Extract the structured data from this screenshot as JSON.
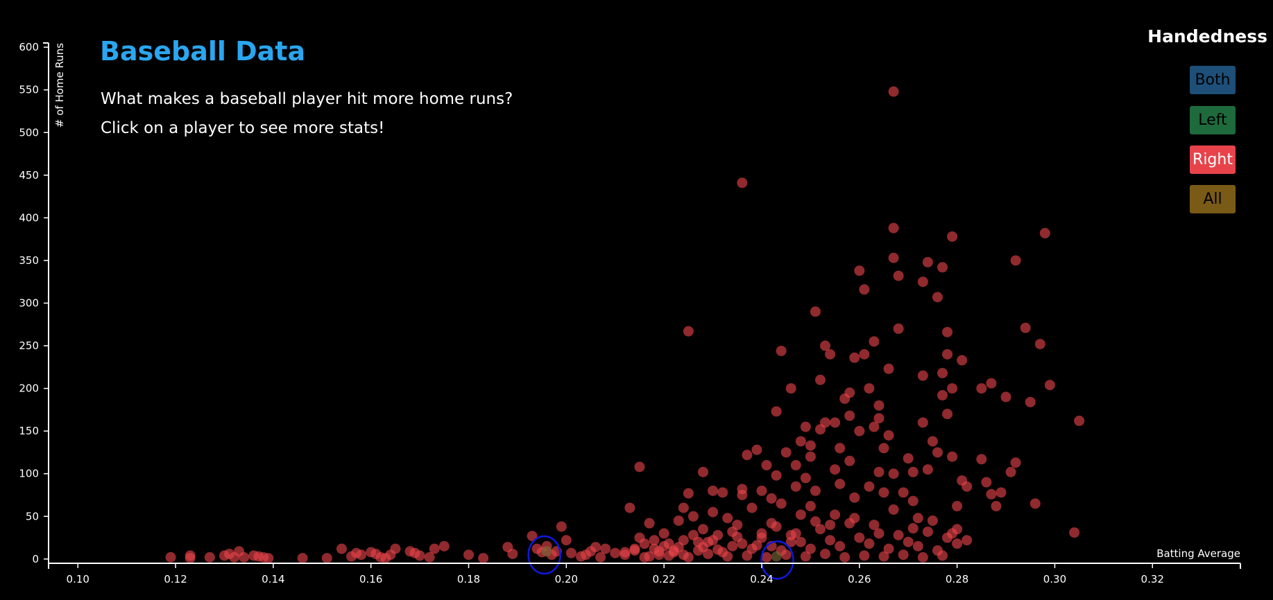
{
  "header": {
    "title": "Baseball Data",
    "subtitle_line1": "What makes a baseball player hit more home runs?",
    "subtitle_line2": "Click on a player to see more stats!"
  },
  "legend": {
    "title": "Handedness",
    "buttons": [
      {
        "label": "Both",
        "color": "#1d4f78"
      },
      {
        "label": "Left",
        "color": "#1f6a3c"
      },
      {
        "label": "Right",
        "color": "#e8434a"
      },
      {
        "label": "All",
        "color": "#7a5a17"
      }
    ]
  },
  "chart_data": {
    "type": "scatter",
    "xlabel": "Batting Average",
    "ylabel": "# of Home Runs",
    "xlim": [
      0.094,
      0.338
    ],
    "ylim": [
      -5,
      605
    ],
    "xticks": [
      "0.10",
      "0.12",
      "0.14",
      "0.16",
      "0.18",
      "0.20",
      "0.22",
      "0.24",
      "0.26",
      "0.28",
      "0.30",
      "0.32"
    ],
    "yticks": [
      "0",
      "50",
      "100",
      "150",
      "200",
      "250",
      "300",
      "350",
      "400",
      "450",
      "500",
      "550",
      "600"
    ],
    "grid": false,
    "series": [
      {
        "color": "#e8434a",
        "points": [
          [
            0.119,
            2
          ],
          [
            0.123,
            1
          ],
          [
            0.123,
            4
          ],
          [
            0.127,
            2
          ],
          [
            0.13,
            4
          ],
          [
            0.131,
            6
          ],
          [
            0.132,
            2
          ],
          [
            0.133,
            9
          ],
          [
            0.134,
            2
          ],
          [
            0.136,
            4
          ],
          [
            0.137,
            3
          ],
          [
            0.138,
            2
          ],
          [
            0.139,
            1
          ],
          [
            0.146,
            1
          ],
          [
            0.151,
            1
          ],
          [
            0.154,
            12
          ],
          [
            0.156,
            3
          ],
          [
            0.157,
            7
          ],
          [
            0.158,
            5
          ],
          [
            0.16,
            8
          ],
          [
            0.161,
            6
          ],
          [
            0.162,
            2
          ],
          [
            0.163,
            1
          ],
          [
            0.164,
            5
          ],
          [
            0.165,
            12
          ],
          [
            0.168,
            9
          ],
          [
            0.169,
            7
          ],
          [
            0.17,
            4
          ],
          [
            0.172,
            2
          ],
          [
            0.173,
            12
          ],
          [
            0.175,
            15
          ],
          [
            0.18,
            5
          ],
          [
            0.183,
            1
          ],
          [
            0.188,
            14
          ],
          [
            0.189,
            6
          ],
          [
            0.193,
            27
          ],
          [
            0.194,
            12
          ],
          [
            0.195,
            8
          ],
          [
            0.196,
            15
          ],
          [
            0.197,
            5
          ],
          [
            0.198,
            9
          ],
          [
            0.199,
            38
          ],
          [
            0.2,
            22
          ],
          [
            0.201,
            7
          ],
          [
            0.203,
            3
          ],
          [
            0.204,
            5
          ],
          [
            0.205,
            9
          ],
          [
            0.206,
            14
          ],
          [
            0.207,
            2
          ],
          [
            0.208,
            12
          ],
          [
            0.21,
            7
          ],
          [
            0.212,
            5
          ],
          [
            0.213,
            60
          ],
          [
            0.214,
            10
          ],
          [
            0.215,
            25
          ],
          [
            0.215,
            108
          ],
          [
            0.216,
            2
          ],
          [
            0.217,
            42
          ],
          [
            0.218,
            12
          ],
          [
            0.219,
            5
          ],
          [
            0.22,
            30
          ],
          [
            0.221,
            18
          ],
          [
            0.222,
            8
          ],
          [
            0.223,
            45
          ],
          [
            0.224,
            22
          ],
          [
            0.224,
            60
          ],
          [
            0.225,
            77
          ],
          [
            0.225,
            267
          ],
          [
            0.226,
            50
          ],
          [
            0.227,
            10
          ],
          [
            0.228,
            35
          ],
          [
            0.228,
            102
          ],
          [
            0.229,
            20
          ],
          [
            0.23,
            55
          ],
          [
            0.23,
            80
          ],
          [
            0.231,
            28
          ],
          [
            0.232,
            78
          ],
          [
            0.233,
            48
          ],
          [
            0.234,
            15
          ],
          [
            0.235,
            40
          ],
          [
            0.236,
            75
          ],
          [
            0.236,
            82
          ],
          [
            0.236,
            441
          ],
          [
            0.237,
            122
          ],
          [
            0.238,
            60
          ],
          [
            0.239,
            128
          ],
          [
            0.24,
            30
          ],
          [
            0.24,
            80
          ],
          [
            0.241,
            110
          ],
          [
            0.242,
            42
          ],
          [
            0.242,
            71
          ],
          [
            0.243,
            173
          ],
          [
            0.243,
            98
          ],
          [
            0.244,
            244
          ],
          [
            0.244,
            65
          ],
          [
            0.245,
            125
          ],
          [
            0.246,
            200
          ],
          [
            0.246,
            20
          ],
          [
            0.247,
            110
          ],
          [
            0.247,
            85
          ],
          [
            0.248,
            138
          ],
          [
            0.248,
            52
          ],
          [
            0.249,
            155
          ],
          [
            0.249,
            95
          ],
          [
            0.25,
            133
          ],
          [
            0.25,
            120
          ],
          [
            0.25,
            62
          ],
          [
            0.251,
            290
          ],
          [
            0.251,
            80
          ],
          [
            0.252,
            210
          ],
          [
            0.252,
            152
          ],
          [
            0.253,
            250
          ],
          [
            0.253,
            160
          ],
          [
            0.254,
            40
          ],
          [
            0.254,
            240
          ],
          [
            0.255,
            105
          ],
          [
            0.255,
            160
          ],
          [
            0.256,
            130
          ],
          [
            0.256,
            88
          ],
          [
            0.257,
            188
          ],
          [
            0.258,
            195
          ],
          [
            0.258,
            168
          ],
          [
            0.258,
            115
          ],
          [
            0.259,
            236
          ],
          [
            0.259,
            72
          ],
          [
            0.26,
            338
          ],
          [
            0.26,
            150
          ],
          [
            0.261,
            316
          ],
          [
            0.261,
            240
          ],
          [
            0.262,
            200
          ],
          [
            0.262,
            85
          ],
          [
            0.263,
            255
          ],
          [
            0.263,
            155
          ],
          [
            0.264,
            180
          ],
          [
            0.264,
            165
          ],
          [
            0.264,
            102
          ],
          [
            0.265,
            130
          ],
          [
            0.265,
            78
          ],
          [
            0.266,
            223
          ],
          [
            0.266,
            145
          ],
          [
            0.267,
            548
          ],
          [
            0.267,
            388
          ],
          [
            0.267,
            353
          ],
          [
            0.267,
            100
          ],
          [
            0.268,
            332
          ],
          [
            0.268,
            270
          ],
          [
            0.269,
            78
          ],
          [
            0.27,
            118
          ],
          [
            0.271,
            102
          ],
          [
            0.271,
            68
          ],
          [
            0.272,
            48
          ],
          [
            0.273,
            325
          ],
          [
            0.273,
            215
          ],
          [
            0.273,
            160
          ],
          [
            0.274,
            348
          ],
          [
            0.274,
            105
          ],
          [
            0.275,
            138
          ],
          [
            0.276,
            307
          ],
          [
            0.276,
            125
          ],
          [
            0.277,
            342
          ],
          [
            0.277,
            218
          ],
          [
            0.277,
            192
          ],
          [
            0.278,
            266
          ],
          [
            0.278,
            240
          ],
          [
            0.278,
            170
          ],
          [
            0.279,
            378
          ],
          [
            0.279,
            200
          ],
          [
            0.279,
            120
          ],
          [
            0.28,
            62
          ],
          [
            0.28,
            35
          ],
          [
            0.281,
            233
          ],
          [
            0.281,
            92
          ],
          [
            0.282,
            85
          ],
          [
            0.285,
            117
          ],
          [
            0.285,
            200
          ],
          [
            0.286,
            90
          ],
          [
            0.287,
            206
          ],
          [
            0.287,
            76
          ],
          [
            0.288,
            62
          ],
          [
            0.289,
            78
          ],
          [
            0.29,
            190
          ],
          [
            0.291,
            102
          ],
          [
            0.292,
            350
          ],
          [
            0.292,
            113
          ],
          [
            0.294,
            271
          ],
          [
            0.295,
            184
          ],
          [
            0.296,
            65
          ],
          [
            0.297,
            252
          ],
          [
            0.298,
            382
          ],
          [
            0.299,
            204
          ],
          [
            0.304,
            31
          ],
          [
            0.305,
            162
          ],
          [
            0.212,
            8
          ],
          [
            0.214,
            12
          ],
          [
            0.216,
            18
          ],
          [
            0.218,
            22
          ],
          [
            0.22,
            15
          ],
          [
            0.222,
            10
          ],
          [
            0.224,
            5
          ],
          [
            0.226,
            28
          ],
          [
            0.228,
            14
          ],
          [
            0.23,
            22
          ],
          [
            0.232,
            8
          ],
          [
            0.234,
            32
          ],
          [
            0.236,
            18
          ],
          [
            0.238,
            12
          ],
          [
            0.24,
            25
          ],
          [
            0.242,
            15
          ],
          [
            0.244,
            10
          ],
          [
            0.246,
            28
          ],
          [
            0.248,
            20
          ],
          [
            0.25,
            12
          ],
          [
            0.252,
            35
          ],
          [
            0.254,
            22
          ],
          [
            0.256,
            15
          ],
          [
            0.258,
            42
          ],
          [
            0.26,
            25
          ],
          [
            0.262,
            18
          ],
          [
            0.264,
            30
          ],
          [
            0.266,
            12
          ],
          [
            0.268,
            28
          ],
          [
            0.27,
            20
          ],
          [
            0.272,
            15
          ],
          [
            0.274,
            32
          ],
          [
            0.276,
            10
          ],
          [
            0.278,
            25
          ],
          [
            0.28,
            18
          ],
          [
            0.282,
            22
          ],
          [
            0.217,
            3
          ],
          [
            0.221,
            4
          ],
          [
            0.225,
            2
          ],
          [
            0.229,
            6
          ],
          [
            0.233,
            3
          ],
          [
            0.237,
            4
          ],
          [
            0.241,
            2
          ],
          [
            0.245,
            5
          ],
          [
            0.249,
            3
          ],
          [
            0.253,
            6
          ],
          [
            0.257,
            2
          ],
          [
            0.261,
            4
          ],
          [
            0.265,
            3
          ],
          [
            0.269,
            5
          ],
          [
            0.273,
            2
          ],
          [
            0.277,
            4
          ],
          [
            0.219,
            9
          ],
          [
            0.223,
            14
          ],
          [
            0.227,
            20
          ],
          [
            0.231,
            11
          ],
          [
            0.235,
            26
          ],
          [
            0.239,
            16
          ],
          [
            0.243,
            38
          ],
          [
            0.247,
            30
          ],
          [
            0.251,
            44
          ],
          [
            0.255,
            52
          ],
          [
            0.259,
            48
          ],
          [
            0.263,
            40
          ],
          [
            0.267,
            58
          ],
          [
            0.271,
            36
          ],
          [
            0.275,
            45
          ],
          [
            0.279,
            30
          ]
        ]
      },
      {
        "color": "#7a6a3a",
        "points": [
          [
            0.196,
            9
          ],
          [
            0.243,
            3
          ]
        ]
      }
    ],
    "annotations": [
      {
        "type": "circle",
        "cx": 0.1955,
        "cy": 8,
        "stroke": "#1018e0"
      },
      {
        "type": "circle",
        "cx": 0.2432,
        "cy": 2,
        "stroke": "#1018e0"
      }
    ]
  }
}
